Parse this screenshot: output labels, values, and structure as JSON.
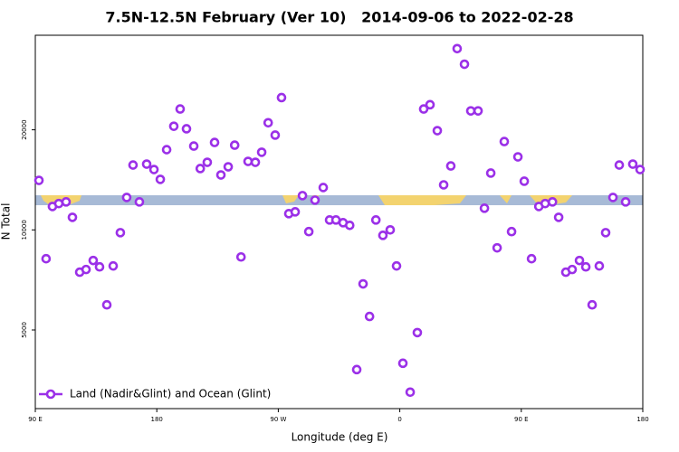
{
  "chart_data": {
    "type": "scatter",
    "title": "7.5N-12.5N February (Ver 10)   2014-09-06 to 2022-02-28",
    "x_label": "Longitude (deg E)",
    "y_label": "N Total",
    "xlim": [
      90,
      540
    ],
    "ylim": [
      2900,
      38500
    ],
    "ylog": true,
    "legend": "lower left",
    "xticks": [
      {
        "value": 90,
        "label": "90 E"
      },
      {
        "value": 180,
        "label": "180"
      },
      {
        "value": 270,
        "label": "90 W"
      },
      {
        "value": 360,
        "label": "0"
      },
      {
        "value": 450,
        "label": "90 E"
      },
      {
        "value": 540,
        "label": "180"
      }
    ],
    "yticks": [
      5000,
      10000,
      20000
    ],
    "x": [
      92.7,
      98,
      102.7,
      107.4,
      112.8,
      117.5,
      122.9,
      127.6,
      132.9,
      137.6,
      143,
      147.7,
      153,
      157.7,
      162.4,
      167.1,
      172.5,
      177.9,
      182.6,
      187.3,
      192.6,
      197.3,
      202,
      207.4,
      212.2,
      217.4,
      222.8,
      227.5,
      232.9,
      237.7,
      242.4,
      247.6,
      253,
      257.7,
      262.5,
      267.7,
      272.4,
      277.8,
      282.5,
      287.9,
      292.6,
      297.2,
      303.3,
      308,
      312.7,
      318,
      322.9,
      328.1,
      332.8,
      337.6,
      342.3,
      347.5,
      352.9,
      357.6,
      362.3,
      367.7,
      373,
      377.7,
      382.4,
      387.8,
      392.5,
      397.8,
      402.5,
      407.9,
      412.6,
      418,
      422.7,
      427.4,
      432.1,
      437.4,
      442.8,
      447.5,
      452.2,
      457.6,
      463,
      467.7,
      473.1,
      477.7,
      483,
      487.7,
      493.1,
      497.8,
      502.5,
      507.8,
      512.5,
      517.9,
      522.6,
      527.3,
      532.6,
      538
    ],
    "series": [
      {
        "name": "Land (Nadir&Glint) and Ocean (Glint)",
        "color": "#9b30e8",
        "values": [
          14090,
          8190,
          11760,
          12000,
          12140,
          10910,
          7460,
          7600,
          8090,
          7740,
          5950,
          7790,
          9810,
          12520,
          15670,
          12140,
          15770,
          15190,
          14190,
          17430,
          20500,
          23100,
          20140,
          17870,
          15290,
          15970,
          18320,
          14630,
          15480,
          17980,
          8290,
          16070,
          15970,
          17120,
          21000,
          19280,
          25000,
          11190,
          11330,
          12680,
          9880,
          12290,
          13410,
          10710,
          10710,
          10510,
          10320,
          3800,
          6880,
          5490,
          10710,
          9630,
          10000,
          7790,
          3970,
          3250,
          4910,
          23100,
          23800,
          19880,
          13660,
          15570,
          35100,
          31500,
          22800,
          22800,
          11620,
          14820,
          8830,
          18440,
          9880,
          16580,
          14010,
          8190,
          11760,
          12000,
          12140,
          10910,
          7460,
          7600,
          8090,
          7740,
          5950,
          7790,
          9810,
          12520,
          15670,
          12140,
          15770,
          15190
        ]
      }
    ]
  }
}
